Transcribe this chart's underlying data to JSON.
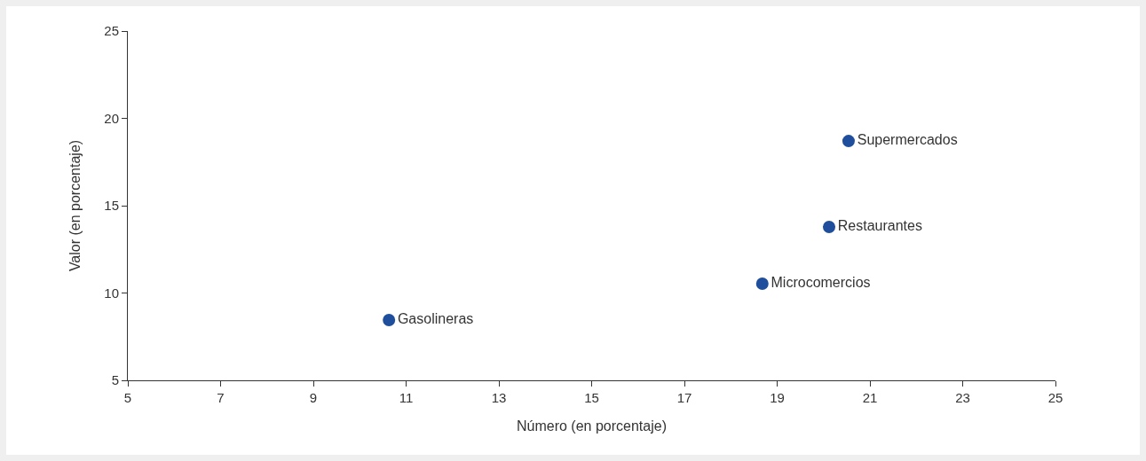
{
  "chart_data": {
    "type": "scatter",
    "xlabel": "Número (en porcentaje)",
    "ylabel": "Valor (en porcentaje)",
    "xlim": [
      5,
      25
    ],
    "xticks": [
      5,
      7,
      9,
      11,
      13,
      15,
      17,
      19,
      21,
      23,
      25
    ],
    "ylim": [
      5,
      25
    ],
    "yticks": [
      5,
      10,
      15,
      20,
      25
    ],
    "grid": false,
    "legend": false,
    "marker": "circle",
    "series": [
      {
        "name": "Gasolineras",
        "color": "#1f4e9c",
        "x": [
          10.63
        ],
        "values": [
          8.45
        ]
      },
      {
        "name": "Microcomercios",
        "color": "#1f4e9c",
        "x": [
          18.68
        ],
        "values": [
          10.53
        ]
      },
      {
        "name": "Restaurantes",
        "color": "#1f4e9c",
        "x": [
          20.12
        ],
        "values": [
          13.78
        ]
      },
      {
        "name": "Supermercados",
        "color": "#1f4e9c",
        "x": [
          20.54
        ],
        "values": [
          18.7
        ]
      }
    ]
  }
}
